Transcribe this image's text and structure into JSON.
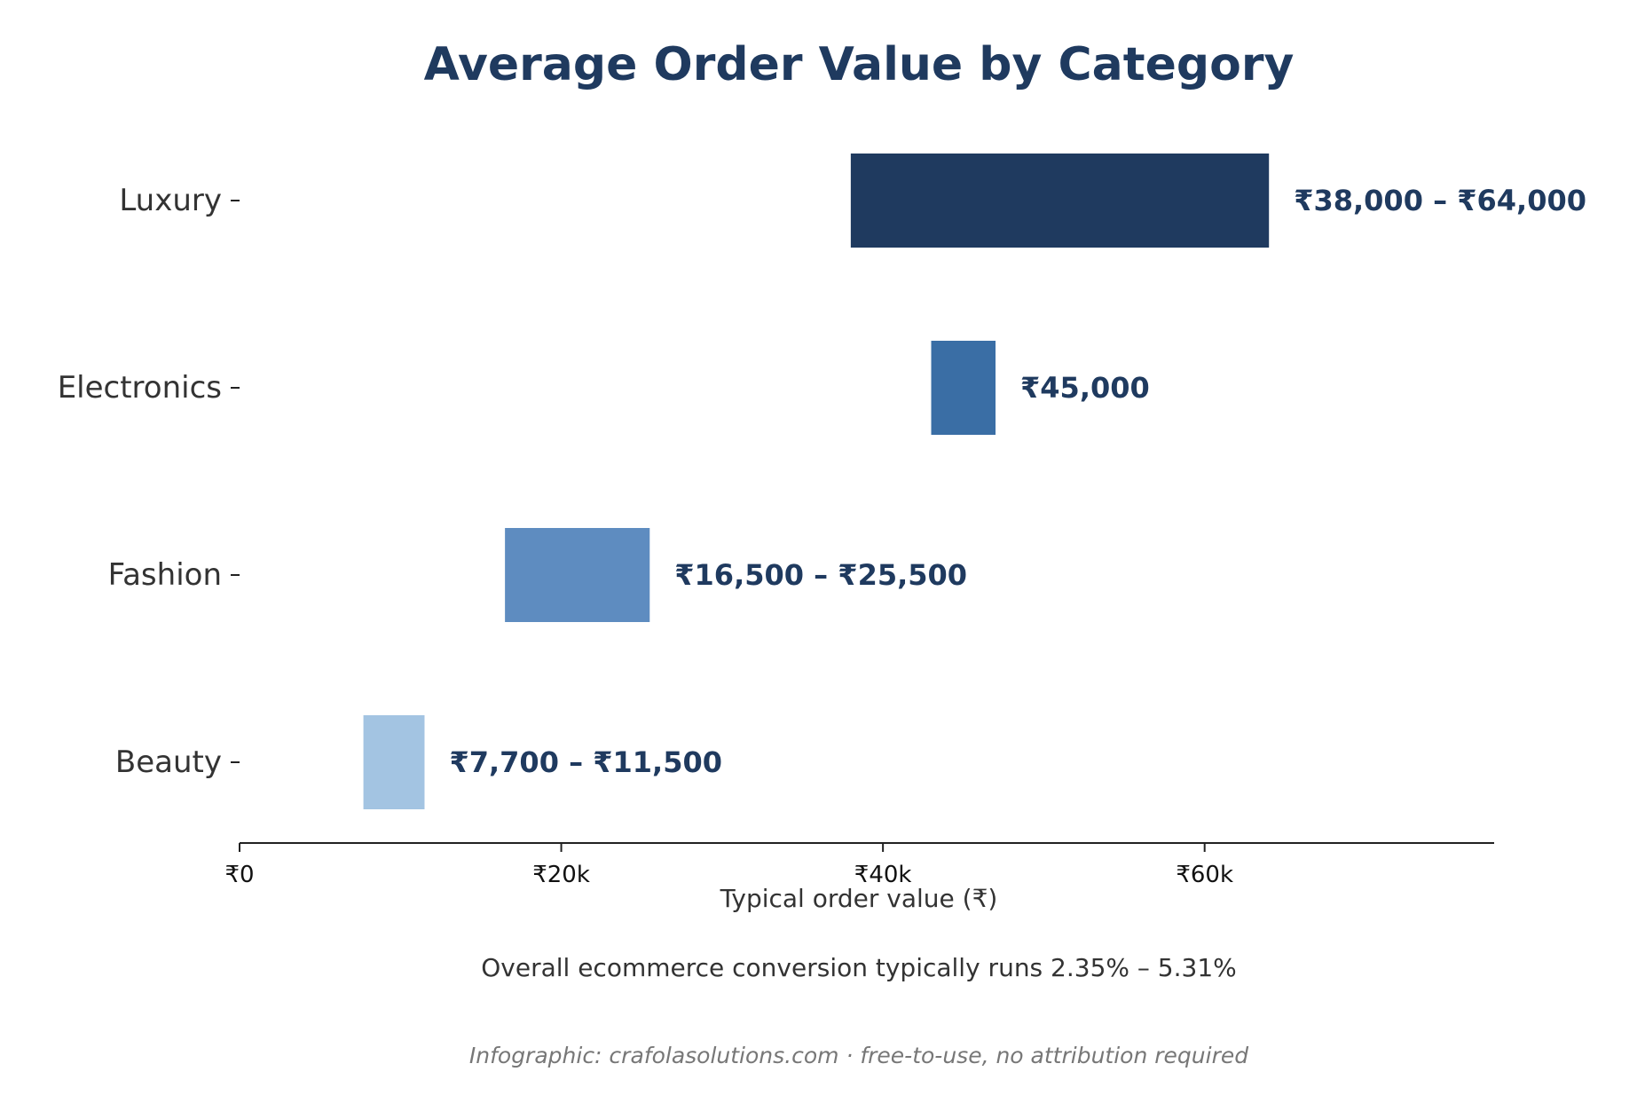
{
  "chart_data": {
    "type": "bar",
    "orientation": "horizontal",
    "title": "Average Order Value by Category",
    "xlabel": "Typical order value (₹)",
    "ylabel": "",
    "xlim": [
      0,
      78000
    ],
    "x_ticks": [
      {
        "value": 0,
        "label": "₹0"
      },
      {
        "value": 20000,
        "label": "₹20k"
      },
      {
        "value": 40000,
        "label": "₹40k"
      },
      {
        "value": 60000,
        "label": "₹60k"
      }
    ],
    "grid": false,
    "bars": [
      {
        "category": "Luxury",
        "start": 38000,
        "end": 64000,
        "label": "₹38,000 – ₹64,000",
        "color": "#1f3a5f"
      },
      {
        "category": "Electronics",
        "start": 43000,
        "end": 47000,
        "label": "₹45,000",
        "color": "#3a6ea5"
      },
      {
        "category": "Fashion",
        "start": 16500,
        "end": 25500,
        "label": "₹16,500 – ₹25,500",
        "color": "#5e8cc0"
      },
      {
        "category": "Beauty",
        "start": 7700,
        "end": 11500,
        "label": "₹7,700 – ₹11,500",
        "color": "#a3c4e2"
      }
    ],
    "note": "Overall ecommerce conversion typically runs 2.35% – 5.31%",
    "credit": "Infographic: crafolasolutions.com · free-to-use, no attribution required",
    "colors": {
      "title": "#1f3a5f",
      "value_label": "#1f3a5f",
      "category_label": "#333333",
      "axis": "#222222",
      "note": "#333333",
      "credit": "#777777"
    }
  }
}
